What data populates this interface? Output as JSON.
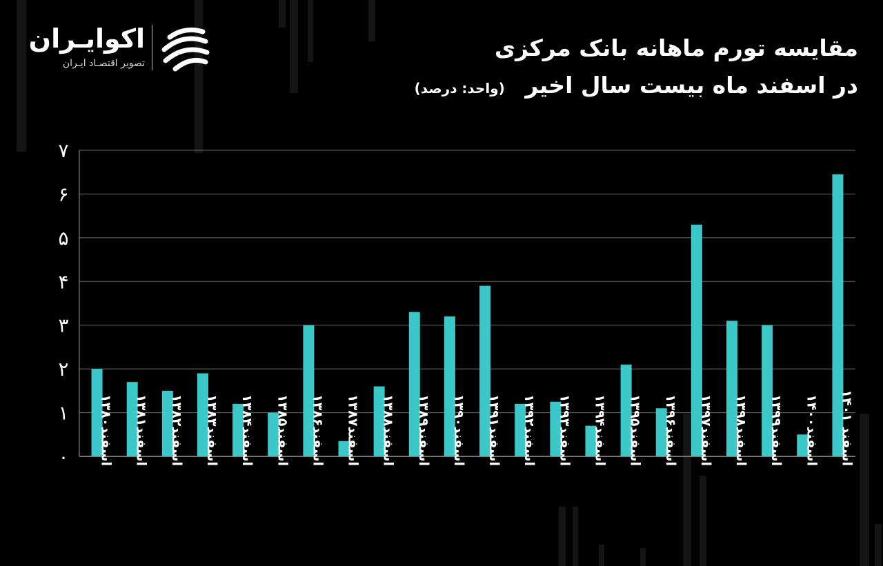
{
  "brand": {
    "name": "اکوایـران",
    "tagline": "تصویر اقتصـاد ایـران",
    "mark_icon": "swirl-logo-icon",
    "accent": "#ffffff"
  },
  "header": {
    "title_line1": "مقایسه تورم ماهانه بانک مرکزی",
    "title_line2": "در اسفند ماه بیست سال اخیر",
    "unit_note": "(واحد: درصد)"
  },
  "colors": {
    "background": "#000000",
    "bar": "#3cc8c8",
    "grid": "#6b6b6b",
    "axis": "#9a9a9a",
    "text": "#ffffff"
  },
  "chart_data": {
    "type": "bar",
    "title": "مقایسه تورم ماهانه بانک مرکزی در اسفند ماه بیست سال اخیر",
    "ylabel": "",
    "xlabel": "",
    "ylim": [
      0,
      7
    ],
    "yticks": [
      0,
      1,
      2,
      3,
      4,
      5,
      6,
      7
    ],
    "ytick_labels": [
      "۰",
      "۱",
      "۲",
      "۳",
      "۴",
      "۵",
      "۶",
      "۷"
    ],
    "grid": true,
    "legend": "none",
    "categories": [
      "اسفند۱۳۸۰",
      "اسفند۱۳۸۱",
      "اسفند۱۳۸۲",
      "اسفند۱۳۸۳",
      "اسفند۱۳۸۴",
      "اسفند۱۳۸۵",
      "اسفند۱۳۸۶",
      "اسفند۱۳۸۷",
      "اسفند۱۳۸۸",
      "اسفند۱۳۸۹",
      "اسفند۱۳۹۰",
      "اسفند۱۳۹۱",
      "اسفند۱۳۹۲",
      "اسفند۱۳۹۳",
      "اسفند۱۳۹۴",
      "اسفند۱۳۹۵",
      "اسفند۱۳۹۶",
      "اسفند۱۳۹۷",
      "اسفند۱۳۹۸",
      "اسفند۱۳۹۹",
      "اسفند۱۴۰۰",
      "اسفند ۱۴۰۱"
    ],
    "values": [
      2.0,
      1.7,
      1.5,
      1.9,
      1.2,
      1.0,
      3.0,
      0.35,
      1.6,
      3.3,
      3.2,
      3.9,
      1.2,
      1.25,
      0.7,
      2.1,
      1.1,
      5.3,
      3.1,
      3.0,
      0.5,
      6.45
    ]
  }
}
